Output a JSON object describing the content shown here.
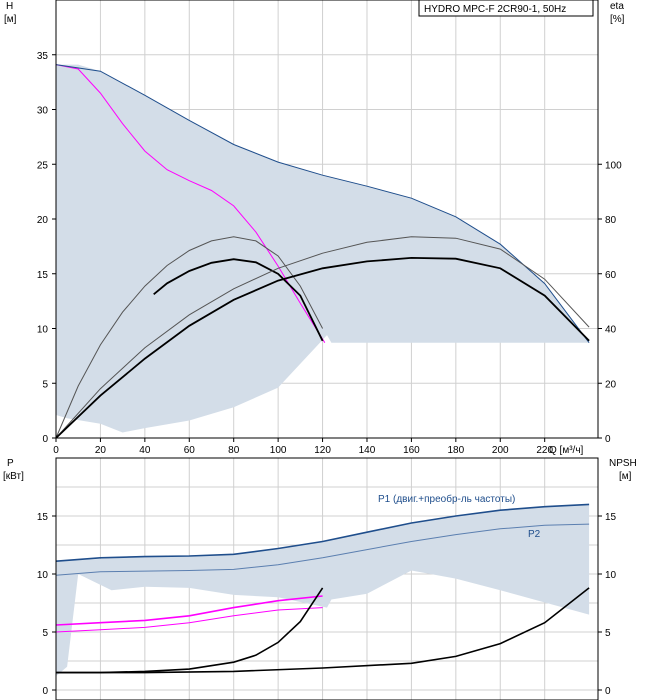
{
  "chart_data": [
    {
      "type": "line",
      "title": "HYDRO MPC-F 2CR90-1, 50Hz",
      "left_axis": {
        "label": "H",
        "unit": "[м]",
        "range": [
          0,
          40
        ],
        "ticks": [
          0,
          5,
          10,
          15,
          20,
          25,
          30,
          35
        ]
      },
      "right_axis": {
        "label": "eta",
        "unit": "[%]",
        "range": [
          0,
          160
        ],
        "ticks": [
          0,
          20,
          40,
          60,
          80,
          100
        ]
      },
      "x_axis": {
        "label": "Q [м³/ч]",
        "range": [
          0,
          244
        ],
        "ticks": [
          0,
          20,
          40,
          60,
          80,
          100,
          120,
          140,
          160,
          180,
          200,
          220
        ]
      },
      "grid": true,
      "series": [
        {
          "role": "band",
          "color": "#d3dde8",
          "upper": [
            [
              0,
              34.1
            ],
            [
              10,
              34.1
            ],
            [
              20,
              33.5
            ],
            [
              40,
              31.3
            ],
            [
              60,
              29
            ],
            [
              80,
              26.8
            ],
            [
              100,
              25.2
            ],
            [
              120,
              24
            ],
            [
              140,
              23
            ],
            [
              160,
              21.9
            ],
            [
              180,
              20.2
            ],
            [
              200,
              17.7
            ],
            [
              220,
              14.1
            ],
            [
              240,
              8.7
            ]
          ],
          "lower": [
            [
              240,
              8.7
            ],
            [
              124,
              8.7
            ],
            [
              122,
              9.4
            ],
            [
              100,
              4.6
            ],
            [
              80,
              2.8
            ],
            [
              60,
              1.6
            ],
            [
              40,
              0.9
            ],
            [
              30,
              0.5
            ],
            [
              20,
              1.3
            ],
            [
              5,
              1.8
            ],
            [
              0,
              2.1
            ]
          ]
        },
        {
          "role": "H-1pump-max",
          "color": "#ff00ff",
          "points": [
            [
              0,
              34.1
            ],
            [
              10,
              33.7
            ],
            [
              20,
              31.5
            ],
            [
              30,
              28.7
            ],
            [
              40,
              26.2
            ],
            [
              50,
              24.5
            ],
            [
              60,
              23.5
            ],
            [
              70,
              22.6
            ],
            [
              80,
              21.2
            ],
            [
              90,
              18.8
            ],
            [
              100,
              15.7
            ],
            [
              110,
              12.3
            ],
            [
              121,
              8.7
            ]
          ]
        },
        {
          "role": "H-2pumps-max",
          "color": "#1f4e8c",
          "points": [
            [
              0,
              34.1
            ],
            [
              20,
              33.5
            ],
            [
              40,
              31.3
            ],
            [
              60,
              29
            ],
            [
              80,
              26.8
            ],
            [
              100,
              25.2
            ],
            [
              120,
              24
            ],
            [
              140,
              23
            ],
            [
              160,
              21.9
            ],
            [
              180,
              20.2
            ],
            [
              200,
              17.7
            ],
            [
              220,
              14.1
            ],
            [
              240,
              8.7
            ]
          ]
        },
        {
          "role": "eta-1pump-max",
          "color": "#555555",
          "points": [
            [
              0,
              0
            ],
            [
              10,
              19
            ],
            [
              20,
              34
            ],
            [
              30,
              46
            ],
            [
              40,
              55.5
            ],
            [
              50,
              63
            ],
            [
              60,
              68.5
            ],
            [
              70,
              72
            ],
            [
              80,
              73.5
            ],
            [
              90,
              72
            ],
            [
              100,
              66.5
            ],
            [
              110,
              55.5
            ],
            [
              120,
              40
            ]
          ]
        },
        {
          "role": "eta-1pump",
          "color": "#000000",
          "points": [
            [
              44,
              52.5
            ],
            [
              50,
              56.5
            ],
            [
              60,
              61
            ],
            [
              70,
              64
            ],
            [
              80,
              65.3
            ],
            [
              90,
              64.2
            ],
            [
              100,
              60
            ],
            [
              110,
              52
            ],
            [
              120,
              35.5
            ]
          ]
        },
        {
          "role": "eta-2pumps-max",
          "color": "#555555",
          "points": [
            [
              0,
              0
            ],
            [
              20,
              18
            ],
            [
              40,
              33
            ],
            [
              60,
              45
            ],
            [
              80,
              54.5
            ],
            [
              100,
              62
            ],
            [
              120,
              67.5
            ],
            [
              140,
              71.5
            ],
            [
              160,
              73.5
            ],
            [
              180,
              73
            ],
            [
              200,
              69
            ],
            [
              220,
              58
            ],
            [
              240,
              40.5
            ]
          ]
        },
        {
          "role": "eta-2pumps",
          "color": "#000000",
          "points": [
            [
              0,
              0
            ],
            [
              20,
              15.5
            ],
            [
              40,
              29
            ],
            [
              60,
              41
            ],
            [
              80,
              50.5
            ],
            [
              100,
              57.5
            ],
            [
              120,
              62
            ],
            [
              140,
              64.5
            ],
            [
              160,
              65.8
            ],
            [
              180,
              65.5
            ],
            [
              200,
              62
            ],
            [
              220,
              52
            ],
            [
              240,
              35.5
            ]
          ]
        }
      ]
    },
    {
      "type": "line",
      "left_axis": {
        "label": "P",
        "unit": "[кВт]",
        "range": [
          0,
          20
        ],
        "ticks": [
          0,
          5,
          10,
          15
        ]
      },
      "right_axis": {
        "label": "NPSH",
        "unit": "[м]",
        "range": [
          0,
          20
        ],
        "ticks": [
          0,
          5,
          10,
          15
        ]
      },
      "x_axis": {
        "range": [
          0,
          244
        ]
      },
      "grid": true,
      "series": [
        {
          "role": "band",
          "color": "#d3dde8",
          "upper": [
            [
              0,
              11.1
            ],
            [
              40,
              11.5
            ],
            [
              80,
              11.7
            ],
            [
              100,
              12.2
            ],
            [
              120,
              12.8
            ],
            [
              140,
              13.6
            ],
            [
              160,
              14.4
            ],
            [
              180,
              15
            ],
            [
              200,
              15.5
            ],
            [
              220,
              15.8
            ],
            [
              240,
              16.0
            ]
          ],
          "lower": [
            [
              240,
              6.5
            ],
            [
              200,
              8.6
            ],
            [
              180,
              9.6
            ],
            [
              160,
              10.3
            ],
            [
              140,
              8.3
            ],
            [
              124,
              7.8
            ],
            [
              122,
              7.1
            ],
            [
              100,
              8.0
            ],
            [
              80,
              8.2
            ],
            [
              60,
              8.8
            ],
            [
              40,
              8.9
            ],
            [
              25,
              8.6
            ],
            [
              10,
              10.0
            ],
            [
              5,
              2.0
            ],
            [
              0,
              1.2
            ]
          ]
        },
        {
          "name": "P1 (двиг.+преобр-ль частоты)",
          "color": "#1f4e8c",
          "points": [
            [
              0,
              11.1
            ],
            [
              20,
              11.4
            ],
            [
              40,
              11.5
            ],
            [
              60,
              11.55
            ],
            [
              80,
              11.7
            ],
            [
              100,
              12.2
            ],
            [
              120,
              12.8
            ],
            [
              140,
              13.6
            ],
            [
              160,
              14.4
            ],
            [
              180,
              15
            ],
            [
              200,
              15.5
            ],
            [
              220,
              15.8
            ],
            [
              240,
              16.0
            ]
          ]
        },
        {
          "name": "P2",
          "color": "#5b7fb0",
          "points": [
            [
              0,
              9.9
            ],
            [
              20,
              10.2
            ],
            [
              40,
              10.25
            ],
            [
              60,
              10.3
            ],
            [
              80,
              10.4
            ],
            [
              100,
              10.8
            ],
            [
              120,
              11.4
            ],
            [
              140,
              12.1
            ],
            [
              160,
              12.8
            ],
            [
              180,
              13.4
            ],
            [
              200,
              13.9
            ],
            [
              220,
              14.2
            ],
            [
              240,
              14.3
            ]
          ]
        },
        {
          "role": "P1-1pump",
          "color": "#ff00ff",
          "points": [
            [
              0,
              5.6
            ],
            [
              20,
              5.8
            ],
            [
              40,
              6.0
            ],
            [
              60,
              6.4
            ],
            [
              80,
              7.1
            ],
            [
              100,
              7.7
            ],
            [
              120,
              8.1
            ]
          ]
        },
        {
          "role": "P2-1pump",
          "color": "#ff00ff",
          "points": [
            [
              0,
              5.0
            ],
            [
              20,
              5.2
            ],
            [
              40,
              5.4
            ],
            [
              60,
              5.8
            ],
            [
              80,
              6.4
            ],
            [
              100,
              6.9
            ],
            [
              120,
              7.1
            ]
          ]
        },
        {
          "role": "NPSH-1pump",
          "color": "#000000",
          "points": [
            [
              0,
              1.5
            ],
            [
              20,
              1.5
            ],
            [
              40,
              1.6
            ],
            [
              60,
              1.8
            ],
            [
              80,
              2.4
            ],
            [
              90,
              3.0
            ],
            [
              100,
              4.1
            ],
            [
              110,
              5.9
            ],
            [
              120,
              8.8
            ]
          ]
        },
        {
          "role": "NPSH-2pumps",
          "color": "#000000",
          "points": [
            [
              0,
              1.5
            ],
            [
              40,
              1.5
            ],
            [
              80,
              1.6
            ],
            [
              120,
              1.9
            ],
            [
              160,
              2.3
            ],
            [
              180,
              2.9
            ],
            [
              200,
              4.0
            ],
            [
              220,
              5.8
            ],
            [
              240,
              8.8
            ]
          ]
        }
      ]
    }
  ]
}
